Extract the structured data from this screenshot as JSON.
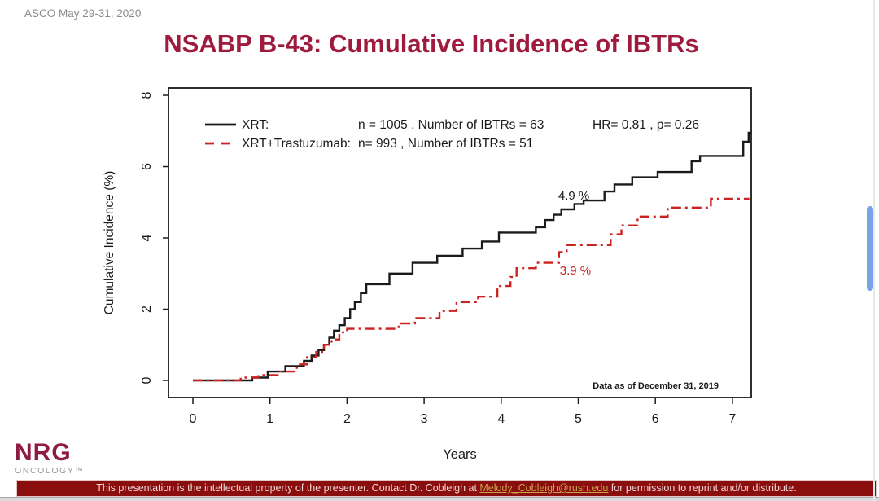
{
  "page": {
    "event_label": "ASCO May 29-31, 2020",
    "title": "NSABP B-43: Cumulative Incidence of IBTRs"
  },
  "colors": {
    "title_maroon": "#9e1b3e",
    "series_black": "#1a1a1a",
    "series_red": "#cc2222",
    "footer_bar_bg": "#8a0e0e",
    "footer_link_gold": "#c9a24a",
    "scroll_thumb_blue": "#79a5e8"
  },
  "chart_data": {
    "type": "line",
    "subtype": "step-cumulative-incidence",
    "xlabel": "Years",
    "ylabel": "Cumulative Incidence (%)",
    "xticks": [
      0,
      1,
      2,
      3,
      4,
      5,
      6,
      7
    ],
    "yticks": [
      0,
      2,
      4,
      6,
      8
    ],
    "xlim": [
      -0.3,
      7.25
    ],
    "ylim": [
      -0.45,
      8.15
    ],
    "grid": false,
    "legend_position": "top-left-inside",
    "hr_text": "HR= 0.81 ,  p= 0.26",
    "data_as_of": "Data as of December 31, 2019",
    "series": [
      {
        "name": "XRT:",
        "stats": "n = 1005 , Number of IBTRs = 63",
        "color": "#1a1a1a",
        "style": "solid",
        "end_year": 7.24,
        "points": [
          [
            0,
            0
          ],
          [
            0.77,
            0.08
          ],
          [
            0.97,
            0.25
          ],
          [
            1.2,
            0.4
          ],
          [
            1.44,
            0.55
          ],
          [
            1.54,
            0.7
          ],
          [
            1.63,
            0.85
          ],
          [
            1.7,
            1.0
          ],
          [
            1.77,
            1.2
          ],
          [
            1.83,
            1.4
          ],
          [
            1.9,
            1.55
          ],
          [
            1.97,
            1.75
          ],
          [
            2.04,
            2.0
          ],
          [
            2.1,
            2.2
          ],
          [
            2.18,
            2.45
          ],
          [
            2.25,
            2.7
          ],
          [
            2.55,
            3.0
          ],
          [
            2.85,
            3.3
          ],
          [
            3.17,
            3.5
          ],
          [
            3.5,
            3.7
          ],
          [
            3.75,
            3.9
          ],
          [
            3.97,
            4.15
          ],
          [
            4.45,
            4.3
          ],
          [
            4.57,
            4.5
          ],
          [
            4.68,
            4.65
          ],
          [
            4.78,
            4.8
          ],
          [
            4.95,
            4.95
          ],
          [
            5.07,
            5.05
          ],
          [
            5.34,
            5.3
          ],
          [
            5.47,
            5.5
          ],
          [
            5.7,
            5.7
          ],
          [
            6.03,
            5.85
          ],
          [
            6.47,
            6.15
          ],
          [
            6.58,
            6.3
          ],
          [
            7.14,
            6.7
          ],
          [
            7.21,
            6.95
          ]
        ]
      },
      {
        "name": "XRT+Trastuzumab:",
        "stats": "n= 993 , Number of IBTRs = 51",
        "color": "#cc2222",
        "style": "dash-dot",
        "end_year": 7.22,
        "points": [
          [
            0,
            0
          ],
          [
            0.62,
            0.08
          ],
          [
            0.85,
            0.15
          ],
          [
            1.1,
            0.25
          ],
          [
            1.35,
            0.45
          ],
          [
            1.48,
            0.65
          ],
          [
            1.6,
            0.8
          ],
          [
            1.7,
            1.0
          ],
          [
            1.8,
            1.15
          ],
          [
            1.9,
            1.35
          ],
          [
            2.0,
            1.45
          ],
          [
            2.67,
            1.6
          ],
          [
            2.88,
            1.75
          ],
          [
            3.2,
            1.95
          ],
          [
            3.42,
            2.2
          ],
          [
            3.7,
            2.35
          ],
          [
            3.95,
            2.65
          ],
          [
            4.12,
            2.9
          ],
          [
            4.2,
            3.15
          ],
          [
            4.45,
            3.3
          ],
          [
            4.75,
            3.6
          ],
          [
            4.85,
            3.8
          ],
          [
            5.42,
            4.1
          ],
          [
            5.56,
            4.35
          ],
          [
            5.77,
            4.6
          ],
          [
            6.16,
            4.85
          ],
          [
            6.72,
            5.1
          ]
        ]
      }
    ],
    "annotations": [
      {
        "text": "4.9 %",
        "color": "#1a1a1a",
        "year": 4.74,
        "pct": 5.07
      },
      {
        "text": "3.9 %",
        "color": "#cc2222",
        "year": 4.76,
        "pct": 2.97
      }
    ]
  },
  "footer": {
    "logo_main": "NRG",
    "logo_sub": "ONCOLOGY™",
    "notice_pre": "This presentation is the intellectual property of the presenter. Contact Dr. Cobleigh at ",
    "notice_link": "Melody_Cobleigh@rush.edu",
    "notice_post": " for permission to reprint and/or distribute."
  }
}
